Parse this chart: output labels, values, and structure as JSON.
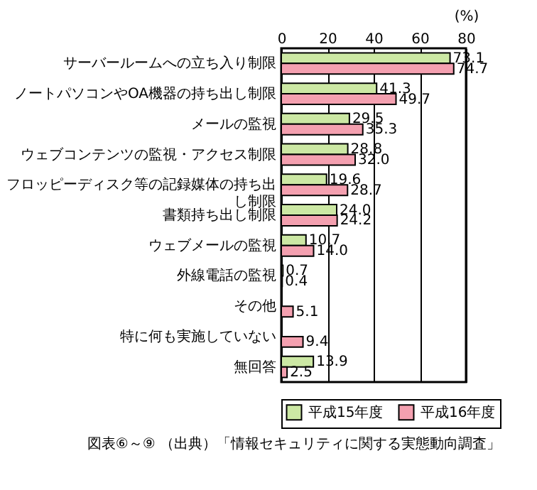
{
  "chart_data": {
    "type": "bar",
    "orientation": "horizontal",
    "xlabel": "(%)",
    "categories": [
      "サーバールームへの立ち入り制限",
      "ノートパソコンやOA機器の持ち出し制限",
      "メールの監視",
      "ウェブコンテンツの監視・アクセス制限",
      "フロッピーディスク等の記録媒体の持ち出し制限",
      "書類持ち出し制限",
      "ウェブメールの監視",
      "外線電話の監視",
      "その他",
      "特に何も実施していない",
      "無回答"
    ],
    "series": [
      {
        "name": "平成15年度",
        "color": "#cce8a4",
        "values": [
          73.1,
          41.3,
          29.5,
          28.8,
          19.6,
          24.0,
          10.7,
          0.7,
          null,
          null,
          13.9
        ],
        "value_labels": [
          "73.1",
          "41.3",
          "29.5",
          "28.8",
          "19.6",
          "24.0",
          "10.7",
          "0.7",
          null,
          null,
          "13.9"
        ]
      },
      {
        "name": "平成16年度",
        "color": "#f4a0b0",
        "values": [
          74.7,
          49.7,
          35.3,
          32.0,
          28.7,
          24.2,
          14.0,
          0.4,
          5.1,
          9.4,
          2.5
        ],
        "value_labels": [
          "74.7",
          "49.7",
          "35.3",
          "32.0",
          "28.7",
          "24.2",
          "14.0",
          "0.4",
          "5.1",
          "9.4",
          "2.5"
        ]
      }
    ],
    "xlim": [
      0,
      80
    ],
    "xticks": [
      0,
      20,
      40,
      60,
      80
    ],
    "grid": "x",
    "legend": "bottom",
    "annotations": [
      "図表⑥～⑨ （出典）「情報セキュリティに関する実態動向調査」"
    ]
  }
}
